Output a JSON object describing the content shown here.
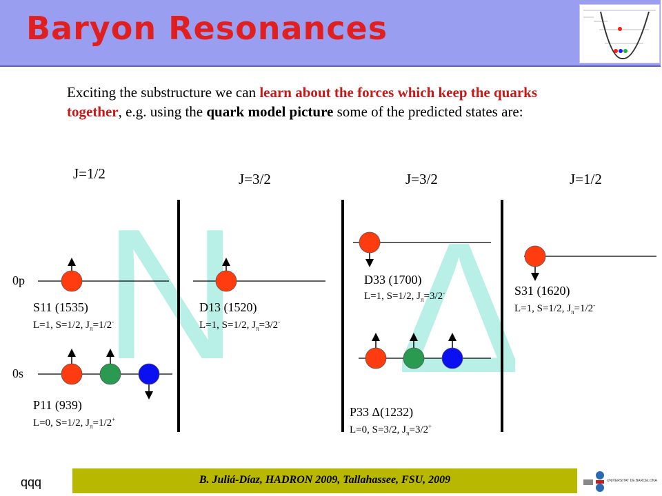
{
  "slide": {
    "title": "Baryon Resonances",
    "intro": {
      "part1": "Exciting the substructure we can ",
      "highlight": "learn about the forces which keep the quarks together",
      "part2": ", e.g. using the ",
      "bold": "quark model picture",
      "part3": " some of the predicted states are:"
    },
    "j_labels": [
      "J=1/2",
      "J=3/2",
      "J=3/2",
      "J=1/2"
    ],
    "levels": [
      "0p",
      "0s"
    ],
    "big_letters": [
      "N",
      "Δ"
    ],
    "states": [
      {
        "name": "S11 (1535)",
        "qn": "L=1, S=1/2, J",
        "pi": "π",
        "jval": "=1/2",
        "parity": "-"
      },
      {
        "name": "P11 (939)",
        "qn": "L=0, S=1/2, J",
        "pi": "π",
        "jval": "=1/2",
        "parity": "+"
      },
      {
        "name": "D13 (1520)",
        "qn": "L=1, S=1/2, J",
        "pi": "π",
        "jval": "=3/2",
        "parity": "-"
      },
      {
        "name": "D33 (1700)",
        "qn": "L=1, S=1/2, J",
        "pi": "π",
        "jval": "=3/2",
        "parity": "-"
      },
      {
        "name": "P33 Δ(1232)",
        "qn": "L=0, S=3/2, J",
        "pi": "π",
        "jval": "=3/2",
        "parity": "+"
      },
      {
        "name": "S31 (1620)",
        "qn": "L=1, S=1/2, J",
        "pi": "π",
        "jval": "=1/2",
        "parity": "-"
      }
    ],
    "footer": "B. Juliá-Díaz, HADRON 2009, Tallahassee, FSU, 2009",
    "corner_text": "qqq",
    "logo_text": "UNIVERSITAT DE BARCELONA",
    "colors": {
      "red_quark": "#ff3b10",
      "green_quark": "#2a9a50",
      "blue_quark": "#0a10f0",
      "title": "#e02020",
      "footer_bg": "#b8b800",
      "letters": "#b8f0e8"
    }
  }
}
